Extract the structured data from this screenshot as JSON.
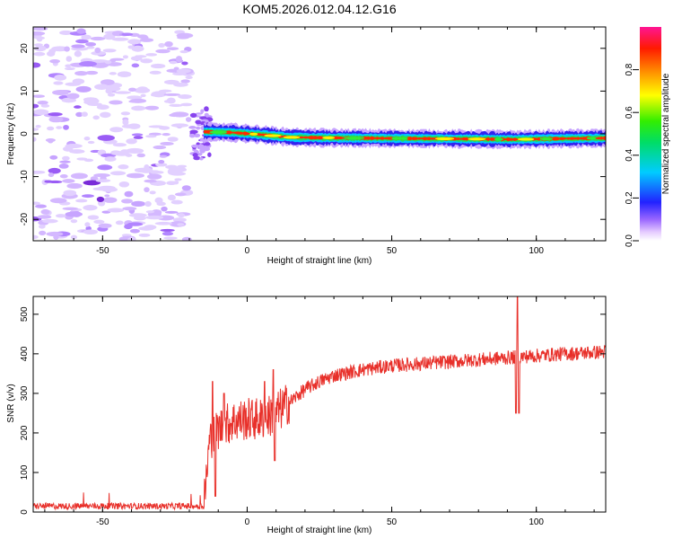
{
  "title": "KOM5.2026.012.04.12.G16",
  "chart_data": [
    {
      "type": "heatmap",
      "name": "spectrogram",
      "xlabel": "Height of straight line (km)",
      "ylabel": "Frequency (Hz)",
      "xlim": [
        -74,
        124
      ],
      "ylim": [
        -25,
        25
      ],
      "xticks": [
        "-50",
        "0",
        "50",
        "100"
      ],
      "yticks": [
        "-20",
        "-10",
        "0",
        "10",
        "20"
      ],
      "colorbar": {
        "label": "Normalized spectral amplitude",
        "range": [
          0,
          1
        ],
        "ticks": [
          "0.0",
          "0.2",
          "0.4",
          "0.6",
          "0.8"
        ]
      },
      "noise_region_x": [
        -74,
        -20
      ],
      "signal_onset_x": -15,
      "signal_track": [
        {
          "x": -15,
          "f": 0.5
        },
        {
          "x": -5,
          "f": 0.3
        },
        {
          "x": 5,
          "f": -0.2
        },
        {
          "x": 15,
          "f": -0.8
        },
        {
          "x": 25,
          "f": -0.9
        },
        {
          "x": 40,
          "f": -1.0
        },
        {
          "x": 60,
          "f": -1.1
        },
        {
          "x": 80,
          "f": -1.2
        },
        {
          "x": 92,
          "f": -1.3
        },
        {
          "x": 110,
          "f": -1.1
        },
        {
          "x": 124,
          "f": -1.0
        }
      ]
    },
    {
      "type": "line",
      "name": "snr",
      "series_name": "SNR",
      "xlabel": "Height of straight line (km)",
      "ylabel": "SNR (v/v)",
      "xlim": [
        -74,
        124
      ],
      "ylim": [
        0,
        545
      ],
      "xticks": [
        "-50",
        "0",
        "50",
        "100"
      ],
      "yticks": [
        "0",
        "100",
        "200",
        "300",
        "400",
        "500"
      ],
      "color": "#e8302a",
      "envelope": [
        {
          "x": -74,
          "y": 15
        },
        {
          "x": -15,
          "y": 15
        },
        {
          "x": -13,
          "y": 180
        },
        {
          "x": -10,
          "y": 210
        },
        {
          "x": -5,
          "y": 230
        },
        {
          "x": 0,
          "y": 235
        },
        {
          "x": 5,
          "y": 235
        },
        {
          "x": 10,
          "y": 250
        },
        {
          "x": 15,
          "y": 280
        },
        {
          "x": 20,
          "y": 310
        },
        {
          "x": 25,
          "y": 330
        },
        {
          "x": 30,
          "y": 345
        },
        {
          "x": 40,
          "y": 360
        },
        {
          "x": 50,
          "y": 370
        },
        {
          "x": 60,
          "y": 375
        },
        {
          "x": 70,
          "y": 380
        },
        {
          "x": 80,
          "y": 385
        },
        {
          "x": 90,
          "y": 390
        },
        {
          "x": 100,
          "y": 395
        },
        {
          "x": 110,
          "y": 400
        },
        {
          "x": 124,
          "y": 405
        }
      ],
      "spikes": [
        {
          "x": -12,
          "y": 330
        },
        {
          "x": -11,
          "y": 40
        },
        {
          "x": -8,
          "y": 300
        },
        {
          "x": 6,
          "y": 330
        },
        {
          "x": 9,
          "y": 360
        },
        {
          "x": 9.5,
          "y": 130
        },
        {
          "x": 93,
          "y": 250
        },
        {
          "x": 93.5,
          "y": 545
        },
        {
          "x": 94,
          "y": 250
        }
      ]
    }
  ]
}
